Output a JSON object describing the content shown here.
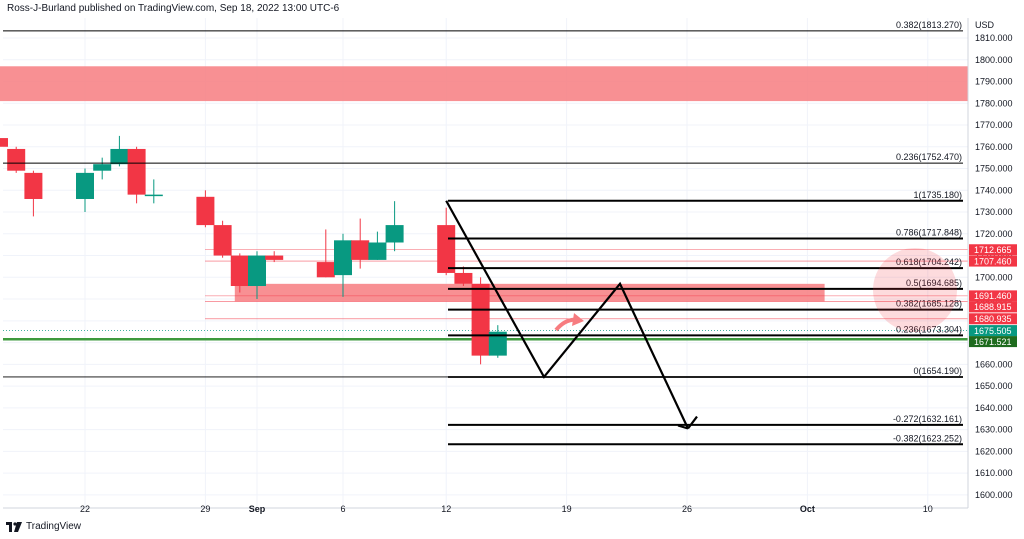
{
  "header": {
    "publisher": "Ross-J-Burland published on TradingView.com, Sep 18, 2022 13:00 UTC-6"
  },
  "footer": {
    "brand": "TradingView"
  },
  "colors": {
    "up": "#089981",
    "down": "#f23645",
    "zone": "#f77c80",
    "level_line": "#000000",
    "price_line": "#f23645",
    "green_line": "#3d9a3d"
  },
  "chart_data": {
    "type": "candlestick",
    "symbol_currency": "USD",
    "ylim": [
      1595,
      1815
    ],
    "y_ticks": [
      1600,
      1610,
      1620,
      1630,
      1640,
      1650,
      1660,
      1670,
      1680,
      1690,
      1700,
      1710,
      1720,
      1730,
      1740,
      1750,
      1760,
      1770,
      1780,
      1790,
      1800,
      1810
    ],
    "y_tick_labels": [
      "1600.000",
      "1610.000",
      "1620.000",
      "1630.000",
      "1640.000",
      "1650.000",
      "1660.000",
      "1670.000",
      "1680.000",
      "1690.000",
      "1700.000",
      "1710.000",
      "1720.000",
      "1730.000",
      "1740.000",
      "1750.000",
      "1760.000",
      "1770.000",
      "1780.000",
      "1790.000",
      "1800.000",
      "1810.000"
    ],
    "x_ticks": [
      {
        "date": "2022-08-22",
        "label": "22"
      },
      {
        "date": "2022-08-29",
        "label": "29"
      },
      {
        "date": "2022-09-01",
        "label": "Sep"
      },
      {
        "date": "2022-09-06",
        "label": "6"
      },
      {
        "date": "2022-09-12",
        "label": "12"
      },
      {
        "date": "2022-09-19",
        "label": "19"
      },
      {
        "date": "2022-09-26",
        "label": "26"
      },
      {
        "date": "2022-10-03",
        "label": "Oct"
      },
      {
        "date": "2022-10-10",
        "label": "10"
      }
    ],
    "candles": [
      {
        "date": "2022-08-16",
        "o": 1779,
        "h": 1781,
        "l": 1761,
        "c": 1765
      },
      {
        "date": "2022-08-17",
        "o": 1764,
        "h": 1772,
        "l": 1759,
        "c": 1760
      },
      {
        "date": "2022-08-18",
        "o": 1759,
        "h": 1760,
        "l": 1748,
        "c": 1749
      },
      {
        "date": "2022-08-19",
        "o": 1748,
        "h": 1749,
        "l": 1728,
        "c": 1736
      },
      {
        "date": "2022-08-22",
        "o": 1736,
        "h": 1750,
        "l": 1730,
        "c": 1748
      },
      {
        "date": "2022-08-23",
        "o": 1749,
        "h": 1755,
        "l": 1745,
        "c": 1752
      },
      {
        "date": "2022-08-24",
        "o": 1752,
        "h": 1765,
        "l": 1751,
        "c": 1759
      },
      {
        "date": "2022-08-25",
        "o": 1759,
        "h": 1760,
        "l": 1734,
        "c": 1738
      },
      {
        "date": "2022-08-26",
        "o": 1738,
        "h": 1745,
        "l": 1734,
        "c": 1738
      },
      {
        "date": "2022-08-29",
        "o": 1737,
        "h": 1740,
        "l": 1723,
        "c": 1724
      },
      {
        "date": "2022-08-30",
        "o": 1724,
        "h": 1726,
        "l": 1709,
        "c": 1710
      },
      {
        "date": "2022-08-31",
        "o": 1710,
        "h": 1711,
        "l": 1693,
        "c": 1696
      },
      {
        "date": "2022-09-01",
        "o": 1696,
        "h": 1712,
        "l": 1690,
        "c": 1710
      },
      {
        "date": "2022-09-02",
        "o": 1710,
        "h": 1712,
        "l": 1707,
        "c": 1708
      },
      {
        "date": "2022-09-05",
        "o": 1707,
        "h": 1722,
        "l": 1700,
        "c": 1700
      },
      {
        "date": "2022-09-06",
        "o": 1701,
        "h": 1720,
        "l": 1691,
        "c": 1717
      },
      {
        "date": "2022-09-07",
        "o": 1717,
        "h": 1727,
        "l": 1704,
        "c": 1708
      },
      {
        "date": "2022-09-08",
        "o": 1708,
        "h": 1721,
        "l": 1708,
        "c": 1716
      },
      {
        "date": "2022-09-09",
        "o": 1716,
        "h": 1735,
        "l": 1712,
        "c": 1724
      },
      {
        "date": "2022-09-12",
        "o": 1724,
        "h": 1732,
        "l": 1701,
        "c": 1702
      },
      {
        "date": "2022-09-13",
        "o": 1702,
        "h": 1705,
        "l": 1696,
        "c": 1697
      },
      {
        "date": "2022-09-14",
        "o": 1697,
        "h": 1700,
        "l": 1660,
        "c": 1664
      },
      {
        "date": "2022-09-15",
        "o": 1664,
        "h": 1678,
        "l": 1663,
        "c": 1675
      }
    ],
    "fib_levels": [
      {
        "label": "0.382(1813.270)",
        "value": 1813.27
      },
      {
        "label": "0.236(1752.470)",
        "value": 1752.47
      },
      {
        "label": "1(1735.180)",
        "value": 1735.18
      },
      {
        "label": "0.786(1717.848)",
        "value": 1717.848
      },
      {
        "label": "0.618(1704.242)",
        "value": 1704.242
      },
      {
        "label": "0.5(1694.685)",
        "value": 1694.685
      },
      {
        "label": "0.382(1685.128)",
        "value": 1685.128
      },
      {
        "label": "0.236(1673.304)",
        "value": 1673.304
      },
      {
        "label": "0(1654.190)",
        "value": 1654.19
      },
      {
        "label": "-0.272(1632.161)",
        "value": 1632.161
      },
      {
        "label": "-0.382(1623.252)",
        "value": 1623.252
      }
    ],
    "price_tags": [
      {
        "label": "1712.665",
        "value": 1712.665,
        "color": "#f23645"
      },
      {
        "label": "1707.460",
        "value": 1707.46,
        "color": "#f23645"
      },
      {
        "label": "1691.460",
        "value": 1691.46,
        "color": "#f23645"
      },
      {
        "label": "1688.915",
        "value": 1688.915,
        "color": "#f23645"
      },
      {
        "label": "1680.935",
        "value": 1680.935,
        "color": "#f23645"
      },
      {
        "label": "1675.505",
        "value": 1675.505,
        "color": "#089981"
      },
      {
        "label": "1671.521",
        "value": 1671.521,
        "color": "#1e6b1e"
      }
    ],
    "zones": [
      {
        "from_date": "2022-08-16",
        "to_date": "axis",
        "low": 1781,
        "high": 1797
      },
      {
        "from_date": "2022-08-31",
        "to_date": "2022-10-04",
        "low": 1688.9,
        "high": 1697
      }
    ],
    "projection_path": [
      {
        "date": "2022-09-12",
        "value": 1735.18
      },
      {
        "date": "2022-09-16",
        "value": 1654.19
      },
      {
        "date": "2022-09-20",
        "value": 1697
      },
      {
        "date": "2022-09-26",
        "value": 1630.5
      },
      {
        "date": "2022-09-26",
        "value": 1636
      }
    ]
  }
}
